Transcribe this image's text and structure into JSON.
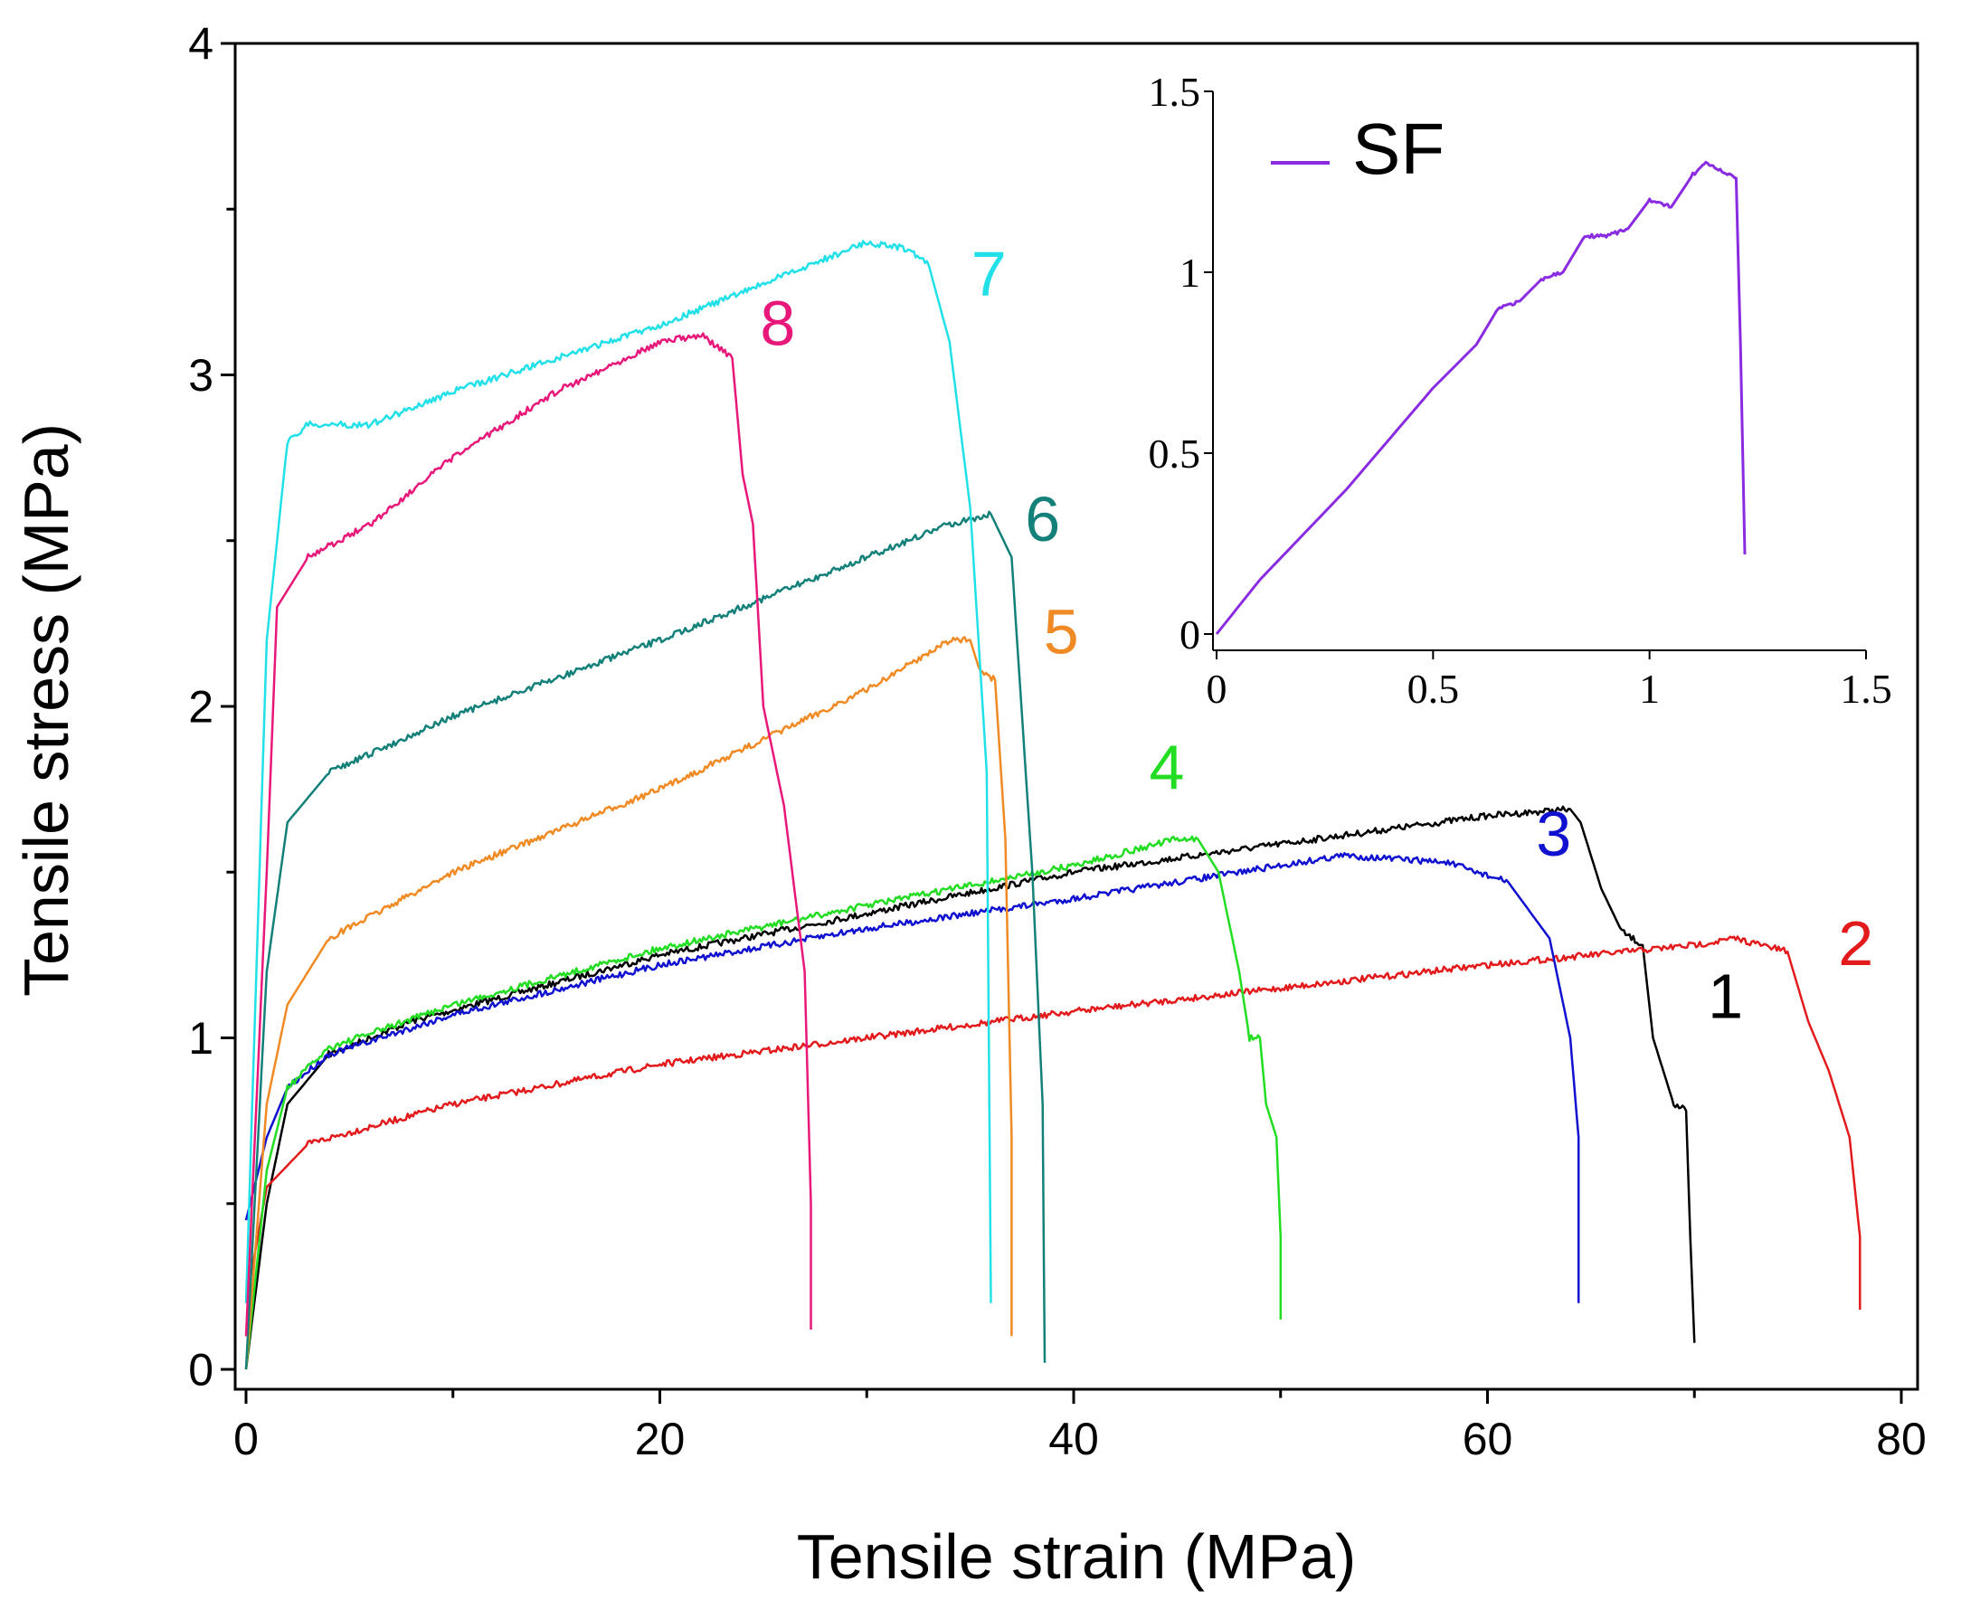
{
  "chart_data": [
    {
      "type": "line",
      "title": "",
      "xlabel": "Tensile strain (MPa)",
      "ylabel": "Tensile stress (MPa)",
      "xlim": [
        0,
        80
      ],
      "ylim": [
        0,
        4
      ],
      "xticks": [
        "0",
        "20",
        "40",
        "60",
        "80"
      ],
      "xtick_values": [
        0,
        20,
        40,
        60,
        80
      ],
      "xminor": [
        10,
        30,
        50,
        70
      ],
      "yticks": [
        "0",
        "1",
        "2",
        "3",
        "4"
      ],
      "ytick_values": [
        0,
        1,
        2,
        3,
        4
      ],
      "yminor": [
        0.5,
        1.5,
        2.5,
        3.5
      ],
      "grid": false,
      "series": [
        {
          "name": "1",
          "color": "#000000",
          "label_at": [
            71.5,
            1.06
          ],
          "points": [
            [
              0,
              0
            ],
            [
              1,
              0.5
            ],
            [
              2,
              0.8
            ],
            [
              4,
              0.95
            ],
            [
              8,
              1.05
            ],
            [
              20,
              1.25
            ],
            [
              40,
              1.5
            ],
            [
              60,
              1.67
            ],
            [
              64,
              1.69
            ],
            [
              64.5,
              1.65
            ],
            [
              65.5,
              1.45
            ],
            [
              66.5,
              1.32
            ],
            [
              67.5,
              1.28
            ],
            [
              68,
              1.0
            ],
            [
              69,
              0.8
            ],
            [
              69.6,
              0.78
            ],
            [
              69.8,
              0.4
            ],
            [
              70,
              0.08
            ]
          ]
        },
        {
          "name": "2",
          "color": "#e31a1c",
          "label_at": [
            77.8,
            1.22
          ],
          "points": [
            [
              0,
              0.2
            ],
            [
              1,
              0.55
            ],
            [
              3,
              0.68
            ],
            [
              10,
              0.8
            ],
            [
              20,
              0.92
            ],
            [
              30,
              1.0
            ],
            [
              40,
              1.08
            ],
            [
              50,
              1.15
            ],
            [
              60,
              1.22
            ],
            [
              70,
              1.28
            ],
            [
              72,
              1.3
            ],
            [
              74.5,
              1.26
            ],
            [
              75.5,
              1.05
            ],
            [
              76.5,
              0.9
            ],
            [
              77.5,
              0.7
            ],
            [
              78,
              0.4
            ],
            [
              78,
              0.18
            ]
          ]
        },
        {
          "name": "3",
          "color": "#1010d0",
          "label_at": [
            63.2,
            1.55
          ],
          "points": [
            [
              0,
              0.45
            ],
            [
              1,
              0.7
            ],
            [
              2,
              0.85
            ],
            [
              4,
              0.95
            ],
            [
              10,
              1.07
            ],
            [
              20,
              1.22
            ],
            [
              30,
              1.33
            ],
            [
              40,
              1.42
            ],
            [
              50,
              1.52
            ],
            [
              53,
              1.55
            ],
            [
              58,
              1.53
            ],
            [
              61,
              1.47
            ],
            [
              63,
              1.3
            ],
            [
              64,
              1.0
            ],
            [
              64.4,
              0.7
            ],
            [
              64.4,
              0.2
            ]
          ]
        },
        {
          "name": "4",
          "color": "#22dd22",
          "label_at": [
            44.5,
            1.75
          ],
          "points": [
            [
              0,
              0
            ],
            [
              1,
              0.6
            ],
            [
              2,
              0.85
            ],
            [
              4,
              0.97
            ],
            [
              10,
              1.1
            ],
            [
              20,
              1.27
            ],
            [
              30,
              1.4
            ],
            [
              40,
              1.52
            ],
            [
              45,
              1.6
            ],
            [
              46,
              1.6
            ],
            [
              47,
              1.5
            ],
            [
              48,
              1.2
            ],
            [
              48.5,
              1.0
            ],
            [
              49,
              1.0
            ],
            [
              49.3,
              0.8
            ],
            [
              49.8,
              0.7
            ],
            [
              50,
              0.4
            ],
            [
              50,
              0.15
            ]
          ]
        },
        {
          "name": "5",
          "color": "#f08a24",
          "label_at": [
            39.4,
            2.16
          ],
          "points": [
            [
              0,
              0
            ],
            [
              1,
              0.8
            ],
            [
              2,
              1.1
            ],
            [
              4,
              1.3
            ],
            [
              10,
              1.5
            ],
            [
              20,
              1.75
            ],
            [
              30,
              2.05
            ],
            [
              34,
              2.2
            ],
            [
              35,
              2.2
            ],
            [
              35.5,
              2.1
            ],
            [
              36.2,
              2.08
            ],
            [
              36.7,
              1.6
            ],
            [
              37,
              0.7
            ],
            [
              37,
              0.1
            ]
          ]
        },
        {
          "name": "6",
          "color": "#13807a",
          "label_at": [
            38.5,
            2.5
          ],
          "points": [
            [
              0,
              0
            ],
            [
              1,
              1.2
            ],
            [
              2,
              1.65
            ],
            [
              4,
              1.8
            ],
            [
              10,
              1.97
            ],
            [
              20,
              2.2
            ],
            [
              30,
              2.45
            ],
            [
              34,
              2.55
            ],
            [
              36,
              2.58
            ],
            [
              37,
              2.45
            ],
            [
              38,
              1.5
            ],
            [
              38.5,
              0.8
            ],
            [
              38.6,
              0.02
            ]
          ]
        },
        {
          "name": "7",
          "color": "#22e0e8",
          "label_at": [
            35.9,
            3.24
          ],
          "points": [
            [
              0,
              0.2
            ],
            [
              1,
              2.2
            ],
            [
              2,
              2.8
            ],
            [
              3,
              2.85
            ],
            [
              6,
              2.85
            ],
            [
              10,
              2.95
            ],
            [
              20,
              3.15
            ],
            [
              30,
              3.4
            ],
            [
              32,
              3.38
            ],
            [
              33,
              3.33
            ],
            [
              34,
              3.1
            ],
            [
              35,
              2.6
            ],
            [
              35.8,
              1.8
            ],
            [
              36,
              0.2
            ]
          ]
        },
        {
          "name": "8",
          "color": "#e8177a",
          "label_at": [
            25.7,
            3.09
          ],
          "points": [
            [
              0,
              0.1
            ],
            [
              1,
              1.5
            ],
            [
              1.5,
              2.3
            ],
            [
              3,
              2.45
            ],
            [
              6,
              2.55
            ],
            [
              10,
              2.75
            ],
            [
              15,
              2.95
            ],
            [
              20,
              3.1
            ],
            [
              22,
              3.12
            ],
            [
              23.5,
              3.05
            ],
            [
              24,
              2.7
            ],
            [
              24.5,
              2.55
            ],
            [
              25,
              2.0
            ],
            [
              26,
              1.7
            ],
            [
              27,
              1.2
            ],
            [
              27.3,
              0.5
            ],
            [
              27.3,
              0.12
            ]
          ]
        }
      ]
    },
    {
      "type": "line",
      "title": "",
      "xlim": [
        0,
        1.5
      ],
      "ylim": [
        0,
        1.5
      ],
      "xticks": [
        "0",
        "0.5",
        "1",
        "1.5"
      ],
      "xtick_values": [
        0,
        0.5,
        1,
        1.5
      ],
      "yticks": [
        "0",
        "0.5",
        "1",
        "1.5"
      ],
      "ytick_values": [
        0,
        0.5,
        1,
        1.5
      ],
      "legend": {
        "position": "top-left",
        "entries": [
          "SF"
        ]
      },
      "series": [
        {
          "name": "SF",
          "color": "#8a2be2",
          "points": [
            [
              0,
              0
            ],
            [
              0.1,
              0.15
            ],
            [
              0.3,
              0.4
            ],
            [
              0.5,
              0.68
            ],
            [
              0.6,
              0.8
            ],
            [
              0.65,
              0.9
            ],
            [
              0.7,
              0.92
            ],
            [
              0.75,
              0.98
            ],
            [
              0.8,
              1.0
            ],
            [
              0.85,
              1.1
            ],
            [
              0.9,
              1.1
            ],
            [
              0.95,
              1.12
            ],
            [
              1,
              1.2
            ],
            [
              1.05,
              1.18
            ],
            [
              1.1,
              1.27
            ],
            [
              1.13,
              1.3
            ],
            [
              1.18,
              1.27
            ],
            [
              1.2,
              1.26
            ],
            [
              1.21,
              0.8
            ],
            [
              1.22,
              0.22
            ]
          ]
        }
      ]
    }
  ]
}
